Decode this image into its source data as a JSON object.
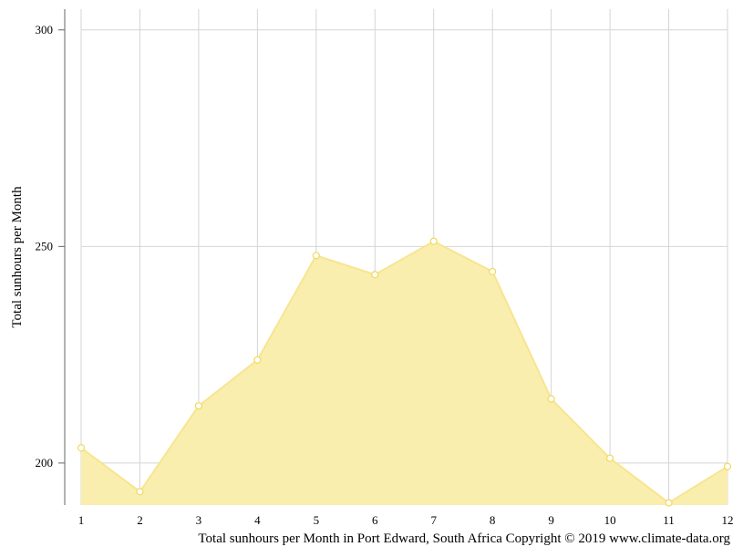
{
  "chart_data": {
    "type": "area",
    "title": "",
    "xlabel": "",
    "ylabel": "Total sunhours per Month",
    "x": [
      1,
      2,
      3,
      4,
      5,
      6,
      7,
      8,
      9,
      10,
      11,
      12
    ],
    "series": [
      {
        "values": [
          203.5,
          193.4,
          213.2,
          223.8,
          247.9,
          243.5,
          251.2,
          244.2,
          214.8,
          201.1,
          190.8,
          199.2
        ]
      }
    ],
    "xlim": [
      1,
      12
    ],
    "ylim": [
      190.3,
      304.8
    ],
    "yticks": [
      200,
      250,
      300
    ],
    "grid": true,
    "colors": {
      "fill": "#faeeae",
      "line": "#f7e58f",
      "grid": "#d5d5d5",
      "axis": "#666666"
    }
  },
  "caption": "Total sunhours per Month in Port Edward, South Africa Copyright © 2019 www.climate-data.org"
}
